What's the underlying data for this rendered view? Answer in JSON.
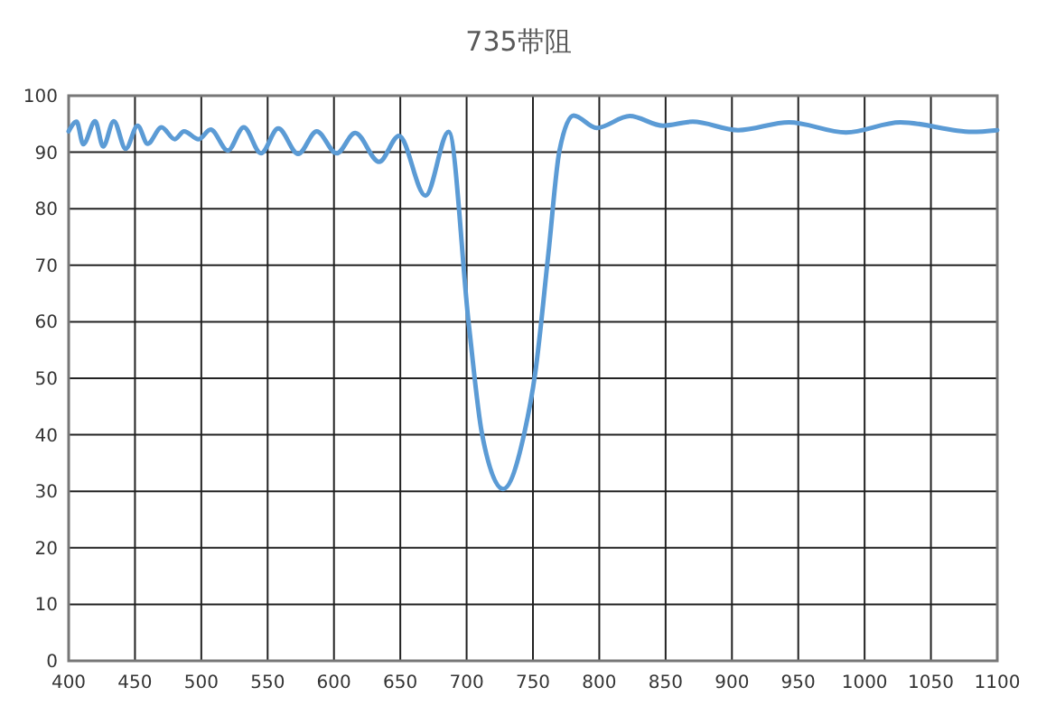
{
  "chart_data": {
    "type": "line",
    "title": "735带阻",
    "xlim": [
      400,
      1100
    ],
    "xticks": [
      400,
      450,
      500,
      550,
      600,
      650,
      700,
      750,
      800,
      850,
      900,
      950,
      1000,
      1050,
      1100
    ],
    "ylim": [
      0,
      100
    ],
    "yticks": [
      0,
      10,
      20,
      30,
      40,
      50,
      60,
      70,
      80,
      90,
      100
    ],
    "grid": true,
    "marker": "none",
    "line_style": "solid",
    "series": [
      {
        "color": "#5b9bd5",
        "x": [
          400,
          406,
          411,
          420,
          426,
          434,
          443,
          452,
          459.5,
          470,
          480,
          487,
          498,
          507,
          520,
          532,
          545,
          558,
          573,
          587,
          602,
          616,
          634,
          649,
          669,
          686.5,
          701.7,
          711.5,
          727.5,
          743.5,
          751.7,
          761.7,
          770,
          780.6,
          798,
          823,
          848,
          870.5,
          904.6,
          943,
          986,
          1027,
          1081,
          1100
        ],
        "values": [
          93.7,
          95.4,
          91.4,
          95.5,
          91.0,
          95.5,
          90.6,
          94.7,
          91.5,
          94.4,
          92.3,
          93.7,
          92.3,
          94.0,
          90.3,
          94.4,
          89.8,
          94.2,
          89.7,
          93.7,
          89.8,
          93.4,
          88.3,
          92.9,
          82.3,
          93.6,
          59.4,
          40.3,
          30.4,
          40.3,
          50.9,
          72.2,
          90.3,
          96.5,
          94.3,
          96.4,
          94.7,
          95.4,
          93.9,
          95.3,
          93.5,
          95.3,
          93.6,
          93.9
        ]
      }
    ]
  }
}
